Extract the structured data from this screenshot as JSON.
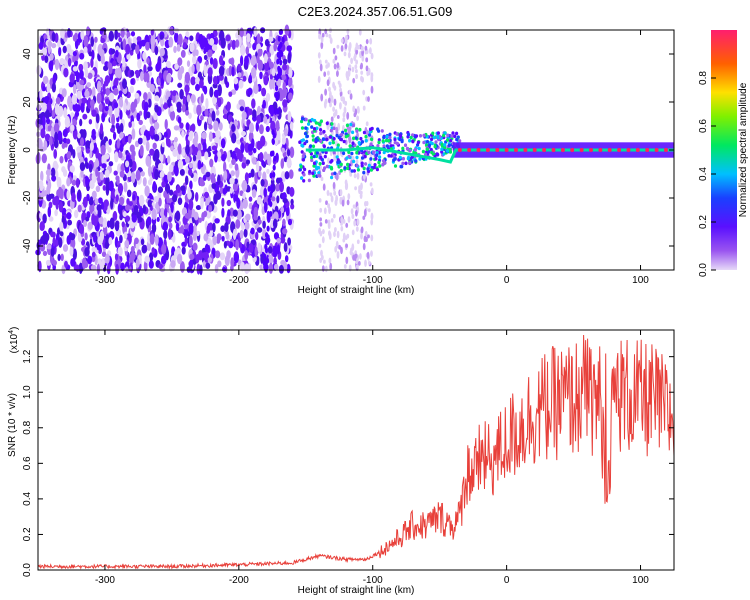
{
  "title": "C2E3.2024.357.06.51.G09",
  "chart_data": [
    {
      "type": "heatmap",
      "xlabel": "Height of straight line (km)",
      "ylabel": "Frequency (Hz)",
      "xlim": [
        -350,
        125
      ],
      "ylim": [
        -50,
        50
      ],
      "xticks": [
        -300,
        -200,
        -100,
        0,
        100
      ],
      "yticks": [
        -40,
        -20,
        0,
        20,
        40
      ],
      "colorbar": {
        "label": "Normalized spectral amplitude",
        "range": [
          0,
          1
        ],
        "ticks": [
          0.0,
          0.2,
          0.4,
          0.6,
          0.8
        ],
        "tick_labels": [
          "0.0",
          "0.2",
          "0.4",
          "0.6",
          "0.8"
        ]
      },
      "signal_track": [
        {
          "x": -150,
          "y": 0
        },
        {
          "x": -120,
          "y": 0
        },
        {
          "x": -100,
          "y": 1
        },
        {
          "x": -90,
          "y": 0
        },
        {
          "x": -80,
          "y": -1
        },
        {
          "x": -70,
          "y": -2
        },
        {
          "x": -60,
          "y": -3
        },
        {
          "x": -50,
          "y": -4
        },
        {
          "x": -42,
          "y": -5
        },
        {
          "x": -38,
          "y": 0
        },
        {
          "x": -20,
          "y": 0
        },
        {
          "x": 0,
          "y": 0
        },
        {
          "x": 50,
          "y": 0
        },
        {
          "x": 100,
          "y": 0
        },
        {
          "x": 125,
          "y": 0
        }
      ]
    },
    {
      "type": "line",
      "xlabel": "Height of straight line (km)",
      "ylabel": "SNR (10 * v/v)",
      "yscale_label": "(x10",
      "yscale_exp": "4",
      "yscale_close": ")",
      "xlim": [
        -350,
        125
      ],
      "ylim": [
        0,
        1.35
      ],
      "xticks": [
        -300,
        -200,
        -100,
        0,
        100
      ],
      "yticks": [
        0.0,
        0.2,
        0.4,
        0.6,
        0.8,
        1.0,
        1.2
      ],
      "ytick_labels": [
        "0.0",
        "0.2",
        "0.4",
        "0.6",
        "0.8",
        "1.0",
        "1.2"
      ],
      "color": "#e8403a",
      "series": [
        {
          "x": [
            -350,
            -300,
            -250,
            -200,
            -160,
            -140,
            -120,
            -105,
            -95,
            -80,
            -70,
            -60,
            -50,
            -40,
            -35,
            -30,
            -25,
            -20,
            -10,
            0,
            10,
            20,
            30,
            40,
            50,
            60,
            70,
            75,
            80,
            90,
            100,
            110,
            120,
            125
          ],
          "values": [
            0.02,
            0.02,
            0.02,
            0.03,
            0.04,
            0.08,
            0.06,
            0.06,
            0.1,
            0.18,
            0.25,
            0.25,
            0.3,
            0.25,
            0.3,
            0.55,
            0.55,
            0.62,
            0.62,
            0.72,
            0.8,
            0.88,
            0.92,
            0.95,
            0.96,
            1.0,
            0.95,
            0.4,
            1.0,
            0.98,
            0.96,
            0.95,
            0.88,
            0.85
          ]
        }
      ]
    }
  ]
}
